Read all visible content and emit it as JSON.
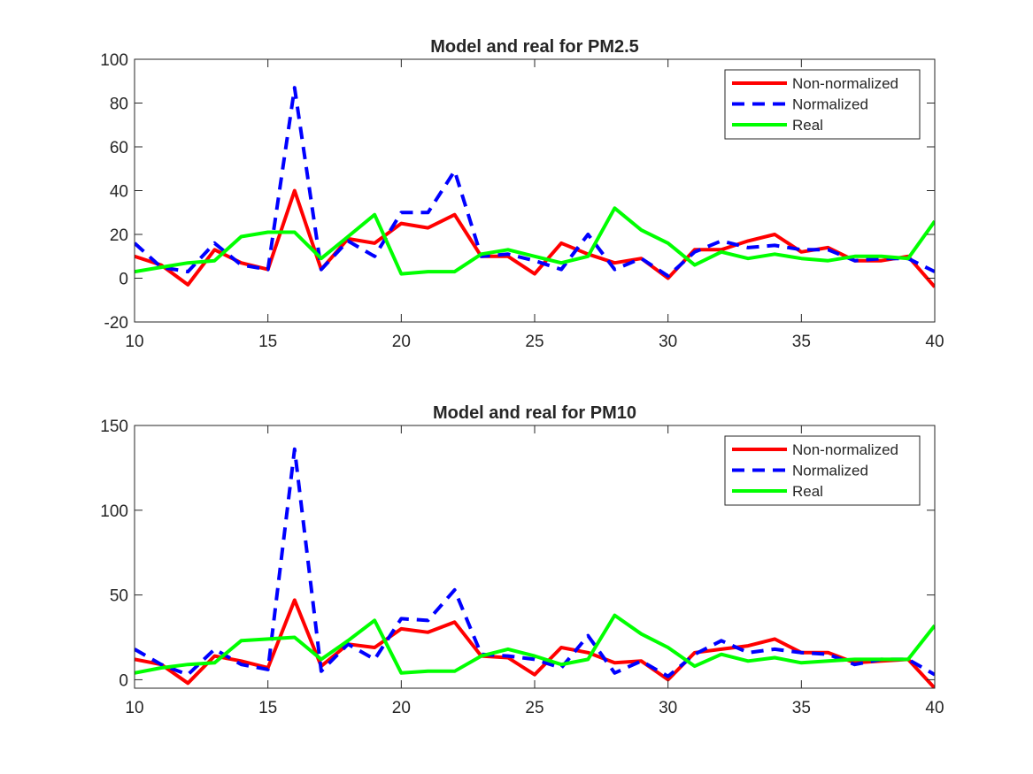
{
  "chart_data": [
    {
      "type": "line",
      "title": "Model and real for PM2.5",
      "xlabel": "",
      "ylabel": "",
      "xlim": [
        10,
        40
      ],
      "ylim": [
        -20,
        100
      ],
      "xticks": [
        10,
        15,
        20,
        25,
        30,
        35,
        40
      ],
      "yticks": [
        -20,
        0,
        20,
        40,
        60,
        80,
        100
      ],
      "grid": false,
      "legend_position": "top-right",
      "x": [
        10,
        11,
        12,
        13,
        14,
        15,
        16,
        17,
        18,
        19,
        20,
        21,
        22,
        23,
        24,
        25,
        26,
        27,
        28,
        29,
        30,
        31,
        32,
        33,
        34,
        35,
        36,
        37,
        38,
        39,
        40
      ],
      "series": [
        {
          "name": "Non-normalized",
          "color": "#ff0000",
          "style": "solid",
          "values": [
            10,
            6,
            -3,
            13,
            7,
            4,
            40,
            4,
            18,
            16,
            25,
            23,
            29,
            10,
            10,
            2,
            16,
            11,
            7,
            9,
            0,
            13,
            13,
            17,
            20,
            12,
            14,
            8,
            8,
            10,
            -4
          ]
        },
        {
          "name": "Normalized",
          "color": "#0000ff",
          "style": "dashed",
          "values": [
            16,
            5,
            3,
            16,
            6,
            4,
            87,
            4,
            17,
            10,
            30,
            30,
            49,
            10,
            11,
            8,
            4,
            20,
            4,
            9,
            1,
            12,
            17,
            14,
            15,
            13,
            13,
            8,
            9,
            9,
            3
          ]
        },
        {
          "name": "Real",
          "color": "#00ff00",
          "style": "solid",
          "values": [
            3,
            5,
            7,
            8,
            19,
            21,
            21,
            9,
            19,
            29,
            2,
            3,
            3,
            11,
            13,
            10,
            7,
            10,
            32,
            22,
            16,
            6,
            12,
            9,
            11,
            9,
            8,
            10,
            10,
            9,
            26
          ]
        }
      ]
    },
    {
      "type": "line",
      "title": "Model and real for PM10",
      "xlabel": "",
      "ylabel": "",
      "xlim": [
        10,
        40
      ],
      "ylim": [
        -5,
        150
      ],
      "xticks": [
        10,
        15,
        20,
        25,
        30,
        35,
        40
      ],
      "yticks": [
        0,
        50,
        100,
        150
      ],
      "grid": false,
      "legend_position": "top-right",
      "x": [
        10,
        11,
        12,
        13,
        14,
        15,
        16,
        17,
        18,
        19,
        20,
        21,
        22,
        23,
        24,
        25,
        26,
        27,
        28,
        29,
        30,
        31,
        32,
        33,
        34,
        35,
        36,
        37,
        38,
        39,
        40
      ],
      "series": [
        {
          "name": "Non-normalized",
          "color": "#ff0000",
          "style": "solid",
          "values": [
            12,
            9,
            -2,
            14,
            11,
            7,
            47,
            8,
            21,
            19,
            30,
            28,
            34,
            14,
            13,
            3,
            19,
            16,
            10,
            11,
            0,
            16,
            18,
            20,
            24,
            16,
            16,
            10,
            11,
            12,
            -5
          ]
        },
        {
          "name": "Normalized",
          "color": "#0000ff",
          "style": "dashed",
          "values": [
            18,
            9,
            3,
            18,
            9,
            6,
            136,
            5,
            21,
            12,
            36,
            35,
            53,
            15,
            14,
            12,
            7,
            26,
            4,
            11,
            2,
            15,
            23,
            16,
            18,
            16,
            15,
            9,
            12,
            12,
            3
          ]
        },
        {
          "name": "Real",
          "color": "#00ff00",
          "style": "solid",
          "values": [
            4,
            7,
            9,
            10,
            23,
            24,
            25,
            12,
            23,
            35,
            4,
            5,
            5,
            14,
            18,
            14,
            9,
            12,
            38,
            27,
            19,
            8,
            15,
            11,
            13,
            10,
            11,
            12,
            12,
            12,
            32
          ]
        }
      ]
    }
  ]
}
